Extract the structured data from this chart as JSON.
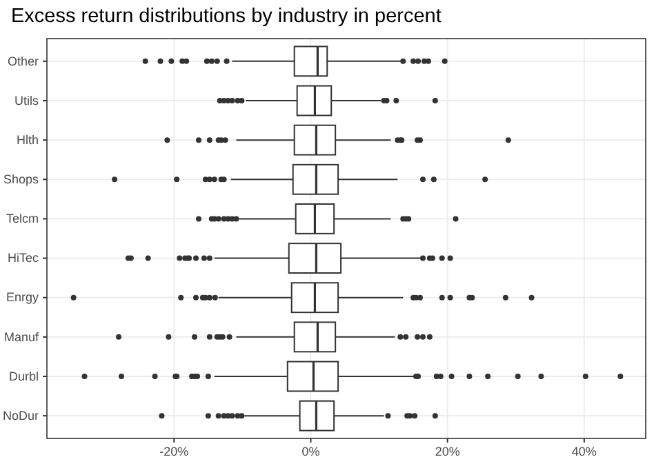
{
  "chart_data": {
    "type": "box",
    "orientation": "horizontal",
    "title": "Excess return distributions by industry in percent",
    "categories": [
      "Other",
      "Utils",
      "Hlth",
      "Shops",
      "Telcm",
      "HiTec",
      "Enrgy",
      "Manuf",
      "Durbl",
      "NoDur"
    ],
    "xlim": [
      -38.6,
      49
    ],
    "xticks": [
      {
        "value": -20,
        "label": "-20%"
      },
      {
        "value": 0,
        "label": "0%"
      },
      {
        "value": 20,
        "label": "20%"
      },
      {
        "value": 40,
        "label": "40%"
      }
    ],
    "grid": true,
    "boxes": [
      {
        "low": -11.5,
        "q1": -2.4,
        "median": 1.0,
        "q3": 2.4,
        "high": 13.3,
        "outliers": [
          -24.2,
          -22.0,
          -20.4,
          -18.8,
          -18.2,
          -15.2,
          -14.5,
          -13.7,
          -12.3,
          13.5,
          15.0,
          15.7,
          16.6,
          17.2,
          19.6
        ]
      },
      {
        "low": -9.5,
        "q1": -2.0,
        "median": 0.6,
        "q3": 3.0,
        "high": 10.3,
        "outliers": [
          -13.3,
          -12.7,
          -12.1,
          -11.5,
          -10.7,
          -10.1,
          10.7,
          11.1,
          12.5,
          18.2
        ]
      },
      {
        "low": -10.9,
        "q1": -2.4,
        "median": 0.8,
        "q3": 3.6,
        "high": 11.7,
        "outliers": [
          -21.0,
          -16.4,
          -14.8,
          -13.5,
          -13.1,
          -12.5,
          12.7,
          13.1,
          13.3,
          15.6,
          16.0,
          28.9
        ]
      },
      {
        "low": -11.7,
        "q1": -2.6,
        "median": 0.8,
        "q3": 4.0,
        "high": 12.7,
        "outliers": [
          -28.7,
          -19.6,
          -15.4,
          -14.8,
          -14.1,
          -13.1,
          -12.7,
          16.4,
          18.0,
          25.5
        ]
      },
      {
        "low": -10.5,
        "q1": -2.2,
        "median": 0.6,
        "q3": 3.4,
        "high": 11.7,
        "outliers": [
          -16.4,
          -14.5,
          -14.1,
          -13.5,
          -12.7,
          -12.1,
          -11.5,
          -10.9,
          13.5,
          13.9,
          14.3,
          21.2
        ]
      },
      {
        "low": -14.1,
        "q1": -3.2,
        "median": 0.8,
        "q3": 4.4,
        "high": 16.2,
        "outliers": [
          -26.7,
          -26.3,
          -23.8,
          -19.2,
          -18.4,
          -18.0,
          -17.8,
          -16.8,
          -15.6,
          -14.8,
          16.4,
          17.4,
          17.8,
          19.2,
          20.4
        ]
      },
      {
        "low": -13.5,
        "q1": -2.8,
        "median": 0.6,
        "q3": 4.0,
        "high": 13.5,
        "outliers": [
          -34.7,
          -19.0,
          -16.8,
          -15.8,
          -15.4,
          -14.8,
          -14.0,
          15.0,
          15.4,
          16.0,
          19.2,
          20.4,
          23.2,
          23.6,
          28.5,
          32.3
        ]
      },
      {
        "low": -10.9,
        "q1": -2.4,
        "median": 1.0,
        "q3": 3.6,
        "high": 12.3,
        "outliers": [
          -28.1,
          -20.8,
          -17.0,
          -14.8,
          -13.7,
          -13.3,
          -12.9,
          -11.9,
          13.1,
          13.9,
          15.6,
          16.4,
          17.4
        ]
      },
      {
        "low": -14.1,
        "q1": -3.4,
        "median": 0.4,
        "q3": 4.0,
        "high": 15.2,
        "outliers": [
          -33.1,
          -27.7,
          -22.8,
          -19.8,
          -19.6,
          -17.4,
          -17.0,
          -16.6,
          -15.0,
          15.4,
          15.7,
          18.4,
          19.0,
          20.6,
          23.2,
          25.9,
          30.3,
          33.7,
          40.2,
          45.3
        ]
      },
      {
        "low": -9.7,
        "q1": -1.6,
        "median": 0.8,
        "q3": 3.4,
        "high": 10.7,
        "outliers": [
          -21.8,
          -15.0,
          -13.5,
          -12.7,
          -12.1,
          -11.5,
          -10.7,
          -10.1,
          11.3,
          14.1,
          14.5,
          15.2,
          18.2
        ]
      }
    ]
  }
}
